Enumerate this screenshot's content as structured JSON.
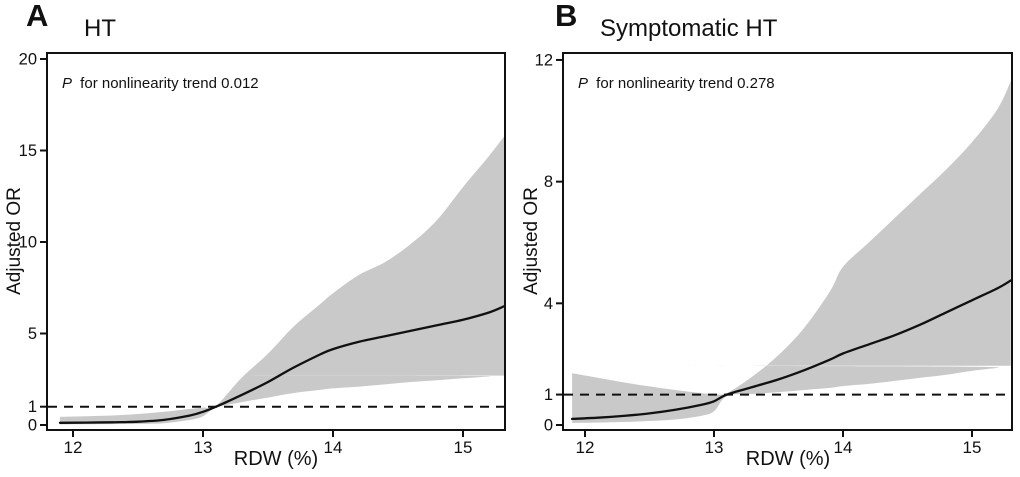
{
  "figure": {
    "background": "#ffffff",
    "line_black": "#111111",
    "band_gray": "#c9c9c9",
    "axis_color": "#111111"
  },
  "chart_data": [
    {
      "type": "line",
      "panel_label": "A",
      "title": "HT",
      "annotation_p": "P",
      "annotation_text": " for nonlinearity trend 0.012",
      "xlabel": "RDW (%)",
      "ylabel": "Adjusted OR",
      "x_ticks": [
        12,
        13,
        14,
        15
      ],
      "y_ticks": [
        0,
        1,
        5,
        10,
        15,
        20
      ],
      "xlim": [
        11.8,
        15.33
      ],
      "ylim": [
        0,
        20
      ],
      "reference_or": 1,
      "grid": false,
      "legend": false,
      "x": [
        11.9,
        12.1,
        12.3,
        12.5,
        12.7,
        12.9,
        13.0,
        13.1,
        13.3,
        13.5,
        13.7,
        13.9,
        14.0,
        14.2,
        14.4,
        14.6,
        14.8,
        15.0,
        15.2,
        15.32
      ],
      "series": [
        {
          "name": "Adjusted OR spline",
          "values": [
            0.12,
            0.13,
            0.15,
            0.18,
            0.28,
            0.52,
            0.72,
            1.0,
            1.65,
            2.35,
            3.15,
            3.85,
            4.15,
            4.55,
            4.85,
            5.15,
            5.45,
            5.75,
            6.15,
            6.5
          ]
        },
        {
          "name": "95% CI upper",
          "values": [
            0.45,
            0.48,
            0.52,
            0.6,
            0.72,
            0.88,
            0.95,
            1.05,
            2.6,
            3.9,
            5.4,
            6.6,
            7.2,
            8.2,
            8.9,
            9.9,
            11.2,
            13.0,
            14.7,
            15.8
          ]
        },
        {
          "name": "95% CI lower",
          "values": [
            0.03,
            0.04,
            0.05,
            0.06,
            0.1,
            0.28,
            0.48,
            0.95,
            1.25,
            1.5,
            1.75,
            1.92,
            2.0,
            2.1,
            2.22,
            2.35,
            2.45,
            2.55,
            2.65,
            2.7
          ]
        }
      ]
    },
    {
      "type": "line",
      "panel_label": "B",
      "title": "Symptomatic HT",
      "annotation_p": "P",
      "annotation_text": " for nonlinearity trend 0.278",
      "xlabel": "RDW (%)",
      "ylabel": "Adjusted OR",
      "x_ticks": [
        12,
        13,
        14,
        15
      ],
      "y_ticks": [
        0,
        1,
        4,
        8,
        12
      ],
      "xlim": [
        11.8,
        15.31
      ],
      "ylim": [
        0,
        12
      ],
      "reference_or": 1,
      "grid": false,
      "legend": false,
      "x": [
        11.9,
        12.1,
        12.3,
        12.5,
        12.7,
        12.9,
        13.0,
        13.1,
        13.3,
        13.5,
        13.7,
        13.9,
        14.0,
        14.2,
        14.4,
        14.6,
        14.8,
        15.0,
        15.2,
        15.3
      ],
      "series": [
        {
          "name": "Adjusted OR spline",
          "values": [
            0.2,
            0.24,
            0.3,
            0.38,
            0.5,
            0.66,
            0.78,
            1.0,
            1.25,
            1.5,
            1.8,
            2.15,
            2.35,
            2.65,
            2.95,
            3.3,
            3.7,
            4.1,
            4.5,
            4.75
          ]
        },
        {
          "name": "95% CI upper",
          "values": [
            1.7,
            1.55,
            1.4,
            1.27,
            1.15,
            1.05,
            1.02,
            1.05,
            1.6,
            2.3,
            3.2,
            4.4,
            5.2,
            6.0,
            6.8,
            7.6,
            8.4,
            9.3,
            10.4,
            11.3
          ]
        },
        {
          "name": "95% CI lower",
          "values": [
            0.07,
            0.08,
            0.1,
            0.13,
            0.18,
            0.3,
            0.45,
            0.95,
            1.02,
            1.08,
            1.15,
            1.22,
            1.28,
            1.35,
            1.45,
            1.55,
            1.65,
            1.78,
            1.88,
            1.95
          ]
        }
      ]
    }
  ]
}
